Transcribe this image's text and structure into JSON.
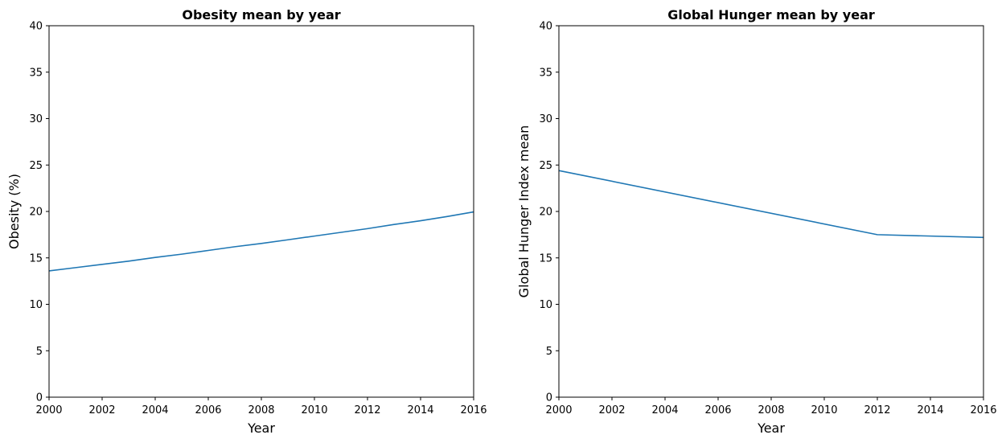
{
  "chart_data": [
    {
      "type": "line",
      "title": "Obesity mean by year",
      "xlabel": "Year",
      "ylabel": "Obesity (%)",
      "xlim": [
        2000,
        2016
      ],
      "ylim": [
        0,
        40
      ],
      "xticks": [
        "2000",
        "2002",
        "2004",
        "2006",
        "2008",
        "2010",
        "2012",
        "2014",
        "2016"
      ],
      "yticks": [
        "0",
        "5",
        "10",
        "15",
        "20",
        "25",
        "30",
        "35",
        "40"
      ],
      "grid": false,
      "series": [
        {
          "color": "#1f77b4",
          "x": [
            2000,
            2001,
            2002,
            2003,
            2004,
            2005,
            2006,
            2007,
            2008,
            2009,
            2010,
            2011,
            2012,
            2013,
            2014,
            2015,
            2016
          ],
          "y": [
            13.6,
            13.95,
            14.3,
            14.65,
            15.05,
            15.4,
            15.8,
            16.2,
            16.55,
            16.95,
            17.35,
            17.75,
            18.15,
            18.6,
            19.0,
            19.45,
            19.95
          ]
        }
      ]
    },
    {
      "type": "line",
      "title": "Global Hunger mean by year",
      "xlabel": "Year",
      "ylabel": "Global Hunger Index mean",
      "xlim": [
        2000,
        2016
      ],
      "ylim": [
        0,
        40
      ],
      "xticks": [
        "2000",
        "2002",
        "2004",
        "2006",
        "2008",
        "2010",
        "2012",
        "2014",
        "2016"
      ],
      "yticks": [
        "0",
        "5",
        "10",
        "15",
        "20",
        "25",
        "30",
        "35",
        "40"
      ],
      "grid": false,
      "series": [
        {
          "color": "#1f77b4",
          "x": [
            2000,
            2012,
            2016
          ],
          "y": [
            24.4,
            17.5,
            17.2
          ]
        }
      ]
    }
  ]
}
